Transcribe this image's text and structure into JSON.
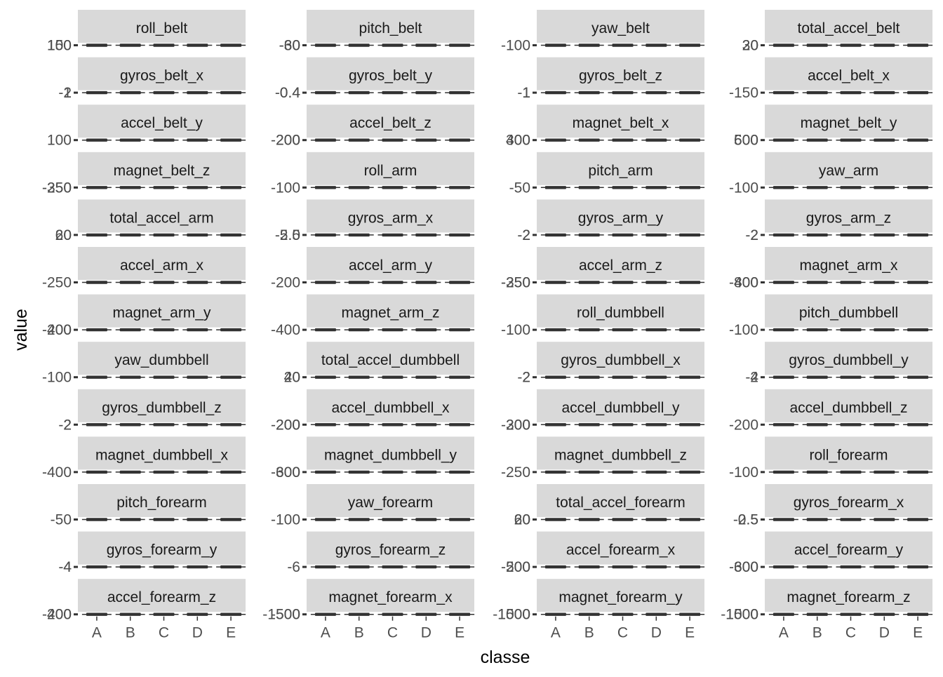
{
  "chart_data": {
    "type": "boxplot-facets",
    "xlabel": "classe",
    "ylabel": "value",
    "categories": [
      "A",
      "B",
      "C",
      "D",
      "E"
    ],
    "panels": [
      {
        "title": "roll_belt",
        "ticks": [
          "150",
          "100"
        ]
      },
      {
        "title": "pitch_belt",
        "ticks": [
          "-60",
          "-30"
        ]
      },
      {
        "title": "yaw_belt",
        "ticks": [
          "-100"
        ]
      },
      {
        "title": "total_accel_belt",
        "ticks": [
          "30",
          "20"
        ]
      },
      {
        "title": "gyros_belt_x",
        "ticks": [
          "2",
          "-1"
        ]
      },
      {
        "title": "gyros_belt_y",
        "ticks": [
          "0.4",
          "-0.4"
        ]
      },
      {
        "title": "gyros_belt_z",
        "ticks": [
          "1",
          "-1"
        ]
      },
      {
        "title": "accel_belt_x",
        "ticks": [
          "-150"
        ]
      },
      {
        "title": "accel_belt_y",
        "ticks": [
          "100"
        ]
      },
      {
        "title": "accel_belt_z",
        "ticks": [
          "200",
          "-200"
        ]
      },
      {
        "title": "magnet_belt_x",
        "ticks": [
          "400",
          "300"
        ]
      },
      {
        "title": "magnet_belt_y",
        "ticks": [
          "600",
          "500"
        ]
      },
      {
        "title": "magnet_belt_z",
        "ticks": [
          "-350",
          "-250"
        ]
      },
      {
        "title": "roll_arm",
        "ticks": [
          "-100"
        ]
      },
      {
        "title": "pitch_arm",
        "ticks": [
          "-50"
        ]
      },
      {
        "title": "yaw_arm",
        "ticks": [
          "-100"
        ]
      },
      {
        "title": "total_accel_arm",
        "ticks": [
          "60",
          "20"
        ]
      },
      {
        "title": "gyros_arm_x",
        "ticks": [
          "-5.0",
          "2.5"
        ]
      },
      {
        "title": "gyros_arm_y",
        "ticks": [
          "2",
          "-2"
        ]
      },
      {
        "title": "gyros_arm_z",
        "ticks": [
          "2",
          "-2"
        ]
      },
      {
        "title": "accel_arm_x",
        "ticks": [
          "-250"
        ]
      },
      {
        "title": "accel_arm_y",
        "ticks": [
          "-200"
        ]
      },
      {
        "title": "accel_arm_z",
        "ticks": [
          "-250",
          "-350"
        ]
      },
      {
        "title": "magnet_arm_x",
        "ticks": [
          "-400",
          "800"
        ]
      },
      {
        "title": "magnet_arm_y",
        "ticks": [
          "400",
          "-200"
        ]
      },
      {
        "title": "magnet_arm_z",
        "ticks": [
          "-400"
        ]
      },
      {
        "title": "roll_dumbbell",
        "ticks": [
          "-100"
        ]
      },
      {
        "title": "pitch_dumbbell",
        "ticks": [
          "-100"
        ]
      },
      {
        "title": "yaw_dumbbell",
        "ticks": [
          "-100"
        ]
      },
      {
        "title": "total_accel_dumbbell",
        "ticks": [
          "40",
          "20"
        ]
      },
      {
        "title": "gyros_dumbbell_x",
        "ticks": [
          "2",
          "-2"
        ]
      },
      {
        "title": "gyros_dumbbell_y",
        "ticks": [
          "4",
          "-2"
        ]
      },
      {
        "title": "gyros_dumbbell_z",
        "ticks": [
          "2",
          "-2"
        ]
      },
      {
        "title": "accel_dumbbell_x",
        "ticks": [
          "-200",
          "200"
        ]
      },
      {
        "title": "accel_dumbbell_y",
        "ticks": [
          "-200",
          "300"
        ]
      },
      {
        "title": "accel_dumbbell_z",
        "ticks": [
          "-200"
        ]
      },
      {
        "title": "magnet_dumbbell_x",
        "ticks": [
          "-400"
        ]
      },
      {
        "title": "magnet_dumbbell_y",
        "ticks": [
          "-600",
          "300"
        ]
      },
      {
        "title": "magnet_dumbbell_z",
        "ticks": [
          "-250"
        ]
      },
      {
        "title": "roll_forearm",
        "ticks": [
          "-100"
        ]
      },
      {
        "title": "pitch_forearm",
        "ticks": [
          "-50"
        ]
      },
      {
        "title": "yaw_forearm",
        "ticks": [
          "-100"
        ]
      },
      {
        "title": "total_accel_forearm",
        "ticks": [
          "60",
          "20"
        ]
      },
      {
        "title": "gyros_forearm_x",
        "ticks": [
          "-2.5",
          "0.5"
        ]
      },
      {
        "title": "gyros_forearm_y",
        "ticks": [
          "4",
          "-4"
        ]
      },
      {
        "title": "gyros_forearm_z",
        "ticks": [
          "-6"
        ]
      },
      {
        "title": "accel_forearm_x",
        "ticks": [
          "-500",
          "200"
        ]
      },
      {
        "title": "accel_forearm_y",
        "ticks": [
          "-600",
          "300"
        ]
      },
      {
        "title": "accel_forearm_z",
        "ticks": [
          "-200",
          "400"
        ]
      },
      {
        "title": "magnet_forearm_x",
        "ticks": [
          "-1500",
          "-500"
        ]
      },
      {
        "title": "magnet_forearm_y",
        "ticks": [
          "-1000",
          "1500"
        ]
      },
      {
        "title": "magnet_forearm_z",
        "ticks": [
          "-1000",
          "1500"
        ]
      }
    ],
    "colors": {
      "strip_background": "#d9d9d9",
      "strip_text": "#1a1a1a",
      "tick_label": "#4d4d4d",
      "box": "#333333",
      "axis_title": "#000000"
    },
    "grid": false,
    "legend": "none"
  }
}
